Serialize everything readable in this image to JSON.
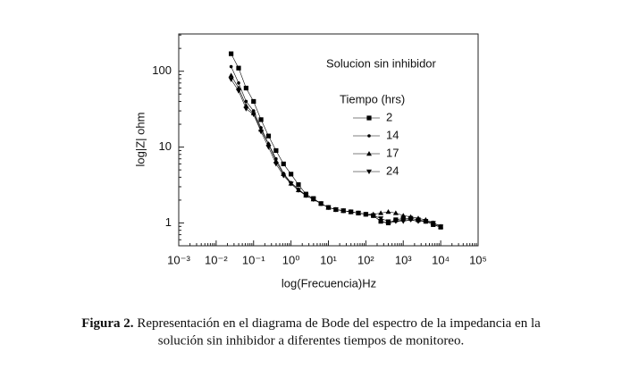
{
  "chart_data": {
    "type": "line",
    "x_label": "log(Frecuencia)Hz",
    "y_label": "log|Z| ohm",
    "annotation": "Solucion sin inhibidor",
    "legend_title": "Tiempo (hrs)",
    "xscale": "log",
    "yscale": "log",
    "xlim": [
      0.001,
      100000
    ],
    "ylim": [
      0.5,
      310
    ],
    "xticks": [
      {
        "value": 0.001,
        "label": "10⁻³"
      },
      {
        "value": 0.01,
        "label": "10⁻²"
      },
      {
        "value": 0.1,
        "label": "10⁻¹"
      },
      {
        "value": 1,
        "label": "10⁰"
      },
      {
        "value": 10,
        "label": "10¹"
      },
      {
        "value": 100,
        "label": "10²"
      },
      {
        "value": 1000,
        "label": "10³"
      },
      {
        "value": 10000,
        "label": "10⁴"
      },
      {
        "value": 100000,
        "label": "10⁵"
      }
    ],
    "yticks": [
      1,
      10,
      100
    ],
    "x": [
      0.0251,
      0.0398,
      0.0631,
      0.1,
      0.158,
      0.251,
      0.398,
      0.631,
      1,
      1.58,
      2.51,
      3.98,
      6.31,
      10,
      15.8,
      25.1,
      39.8,
      63.1,
      100,
      158,
      251,
      398,
      631,
      1000,
      1585,
      2512,
      3981,
      6310,
      10000
    ],
    "series": [
      {
        "name": "2",
        "color": "#000000",
        "marker": "square",
        "values": [
          170,
          110,
          60,
          40,
          23,
          14,
          9,
          6,
          4.4,
          3.2,
          2.4,
          2.1,
          1.8,
          1.6,
          1.5,
          1.45,
          1.4,
          1.35,
          1.3,
          1.25,
          1.05,
          1.0,
          1.1,
          1.15,
          1.15,
          1.1,
          1.05,
          0.95,
          0.88
        ]
      },
      {
        "name": "14",
        "color": "#000000",
        "marker": "circle",
        "values": [
          115,
          70,
          40,
          30,
          18,
          11,
          7,
          4.5,
          3.4,
          2.8,
          2.3,
          2.05,
          1.8,
          1.6,
          1.5,
          1.45,
          1.4,
          1.35,
          1.3,
          1.25,
          1.05,
          0.98,
          1.05,
          1.1,
          1.1,
          1.05,
          1.05,
          0.95,
          0.88
        ]
      },
      {
        "name": "17",
        "color": "#000000",
        "marker": "triangle-up",
        "values": [
          88,
          60,
          35,
          28,
          17,
          11,
          6.5,
          4.4,
          3.3,
          2.7,
          2.3,
          2.05,
          1.8,
          1.6,
          1.5,
          1.45,
          1.4,
          1.35,
          1.3,
          1.3,
          1.35,
          1.4,
          1.35,
          1.25,
          1.2,
          1.15,
          1.1,
          1.0,
          0.9
        ]
      },
      {
        "name": "24",
        "color": "#000000",
        "marker": "triangle-down",
        "values": [
          78,
          55,
          32,
          27,
          16,
          10,
          6,
          4.2,
          3.3,
          2.7,
          2.3,
          2.05,
          1.8,
          1.6,
          1.5,
          1.45,
          1.4,
          1.35,
          1.3,
          1.25,
          1.15,
          1.05,
          1.05,
          1.05,
          1.1,
          1.05,
          1.05,
          1.0,
          0.9
        ]
      }
    ],
    "caption_label": "Figura 2.",
    "caption_lines": [
      "Representación en el diagrama de Bode del espectro de la impedancia en la",
      "solución sin inhibidor  a diferentes tiempos de monitoreo."
    ]
  }
}
